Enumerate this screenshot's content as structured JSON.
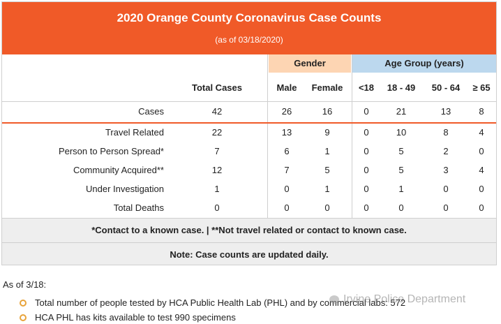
{
  "banner": {
    "title": "2020 Orange County Coronavirus Case Counts",
    "subtitle": "(as of 03/18/2020)"
  },
  "group_headers": {
    "gender": "Gender",
    "age": "Age Group (years)"
  },
  "columns": [
    "Total Cases",
    "Male",
    "Female",
    "<18",
    "18 - 49",
    "50 - 64",
    "≥ 65"
  ],
  "rows": [
    {
      "label": "Cases",
      "values": [
        "42",
        "26",
        "16",
        "0",
        "21",
        "13",
        "8"
      ]
    },
    {
      "label": "Travel Related",
      "values": [
        "22",
        "13",
        "9",
        "0",
        "10",
        "8",
        "4"
      ]
    },
    {
      "label": "Person to Person Spread*",
      "values": [
        "7",
        "6",
        "1",
        "0",
        "5",
        "2",
        "0"
      ]
    },
    {
      "label": "Community Acquired**",
      "values": [
        "12",
        "7",
        "5",
        "0",
        "5",
        "3",
        "4"
      ]
    },
    {
      "label": "Under Investigation",
      "values": [
        "1",
        "0",
        "1",
        "0",
        "1",
        "0",
        "0"
      ]
    },
    {
      "label": "Total Deaths",
      "values": [
        "0",
        "0",
        "0",
        "0",
        "0",
        "0",
        "0"
      ]
    }
  ],
  "footnote": "*Contact to a known case. | **Not travel related or contact to known case.",
  "note": "Note: Case counts are updated daily.",
  "as_of": "As of 3/18:",
  "bullets": [
    "Total number of people tested by HCA Public Health Lab (PHL) and by commercial labs: 572",
    "HCA PHL has kits available to test 990 specimens"
  ],
  "watermark": "Irvine Police Department",
  "colors": {
    "banner": "#f05a28",
    "gender": "#fdd5b3",
    "age": "#bcd8ee",
    "note_bg": "#eeeeee"
  }
}
